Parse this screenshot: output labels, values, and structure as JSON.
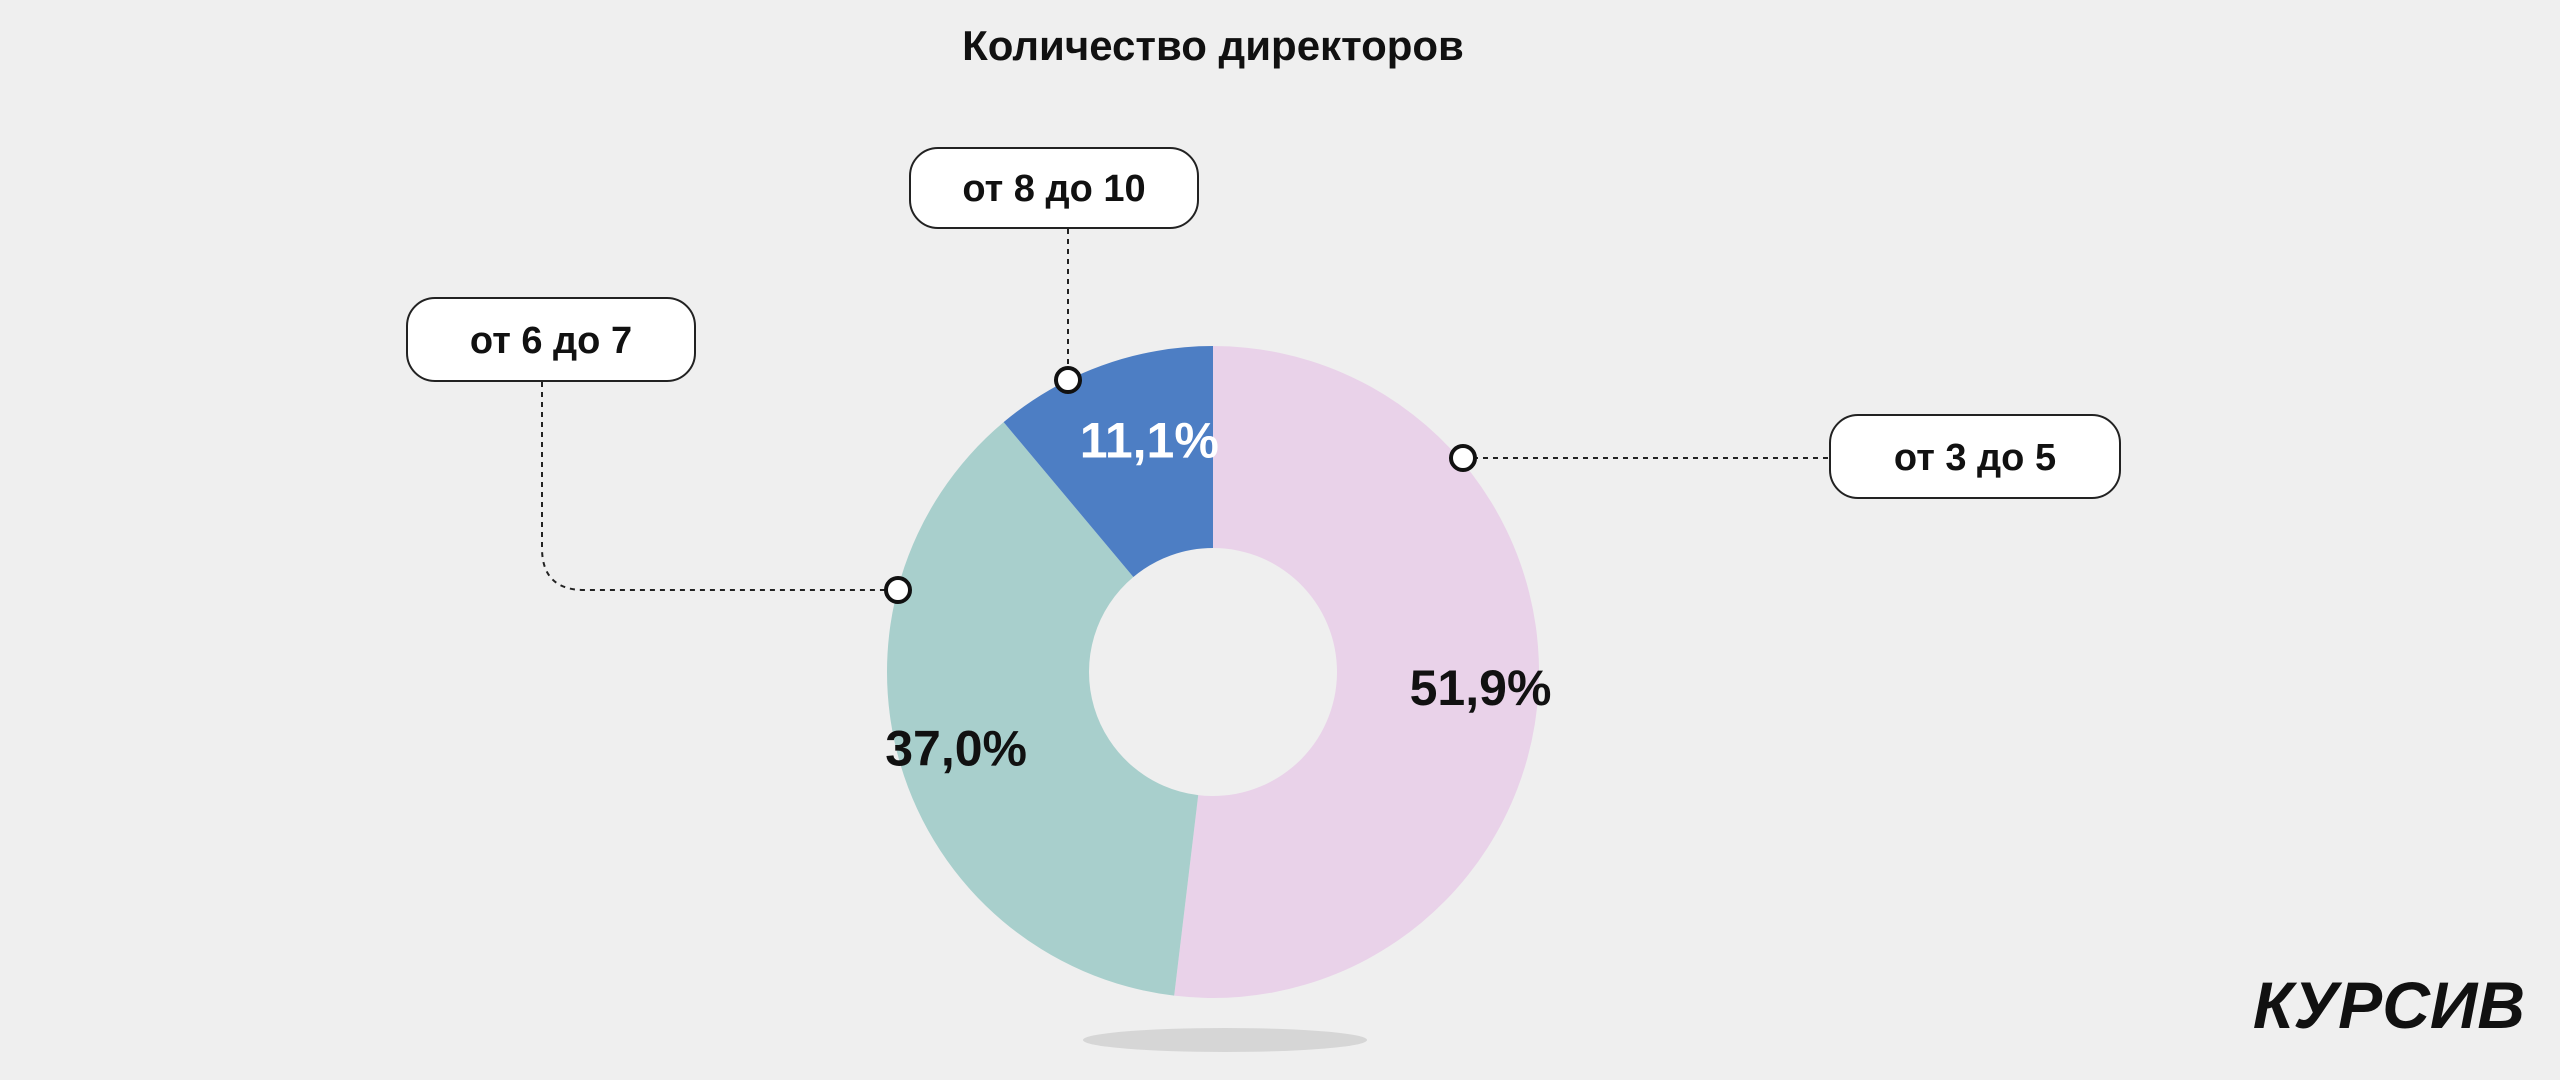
{
  "chart_data": {
    "type": "pie",
    "variant": "donut",
    "title": "Количество директоров",
    "slices": [
      {
        "label": "от 3 до 5",
        "value": 51.9,
        "value_label": "51,9%",
        "color": "#e9d2e9",
        "label_color": "#111111"
      },
      {
        "label": "от 6 до 7",
        "value": 37.0,
        "value_label": "37,0%",
        "color": "#a8cfcc",
        "label_color": "#111111"
      },
      {
        "label": "от 8 до 10",
        "value": 11.1,
        "value_label": "11,1%",
        "color": "#4d7ec4",
        "label_color": "#ffffff"
      }
    ],
    "start_direction": "12 o'clock",
    "direction": "clockwise"
  },
  "colors": {
    "background": "#efefef",
    "text": "#111111"
  },
  "brand": {
    "logo_text": "КУРСИВ"
  }
}
